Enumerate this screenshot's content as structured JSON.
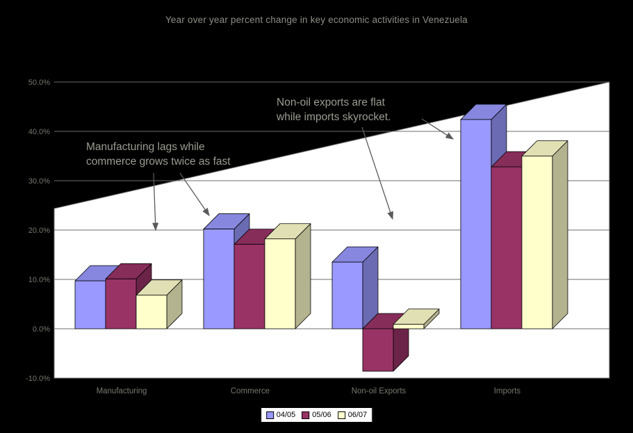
{
  "chart_data": {
    "type": "bar",
    "variant": "3d-clustered-column",
    "title": "Year over year percent change in key economic activities in Venezuela",
    "categories": [
      "Manufacturing",
      "Commerce",
      "Non-oil Exports",
      "Imports"
    ],
    "series": [
      {
        "name": "04/05",
        "color": "#9999FF",
        "values": [
          9.7,
          20.2,
          13.5,
          42.4
        ]
      },
      {
        "name": "05/06",
        "color": "#993366",
        "values": [
          10.1,
          17.1,
          -8.6,
          32.8
        ]
      },
      {
        "name": "06/07",
        "color": "#FFFFCC",
        "values": [
          6.8,
          18.2,
          0.9,
          35.0
        ]
      }
    ],
    "y_axis": {
      "min": -10,
      "max": 50,
      "step": 10,
      "format": "percent",
      "tick_labels": [
        "50.0%",
        "40.0%",
        "30.0%",
        "20.0%",
        "10.0%",
        "0.0%",
        "-10.0%"
      ]
    },
    "grid": true,
    "legend_position": "bottom"
  },
  "annotations": [
    {
      "text": "Manufacturing lags while\ncommerce grows twice as fast"
    },
    {
      "text": "Non-oil exports are flat\nwhile imports skyrocket."
    }
  ],
  "palette": {
    "background": "#000000",
    "plot_fill": "#FFFFFF",
    "grid": "#6C6C6C",
    "axis_text": "#78786F",
    "dim_text": "#9C9C92",
    "title_text": "#8F8F86",
    "arrow": "#5A5A5A",
    "bar_outline": "#000000"
  }
}
